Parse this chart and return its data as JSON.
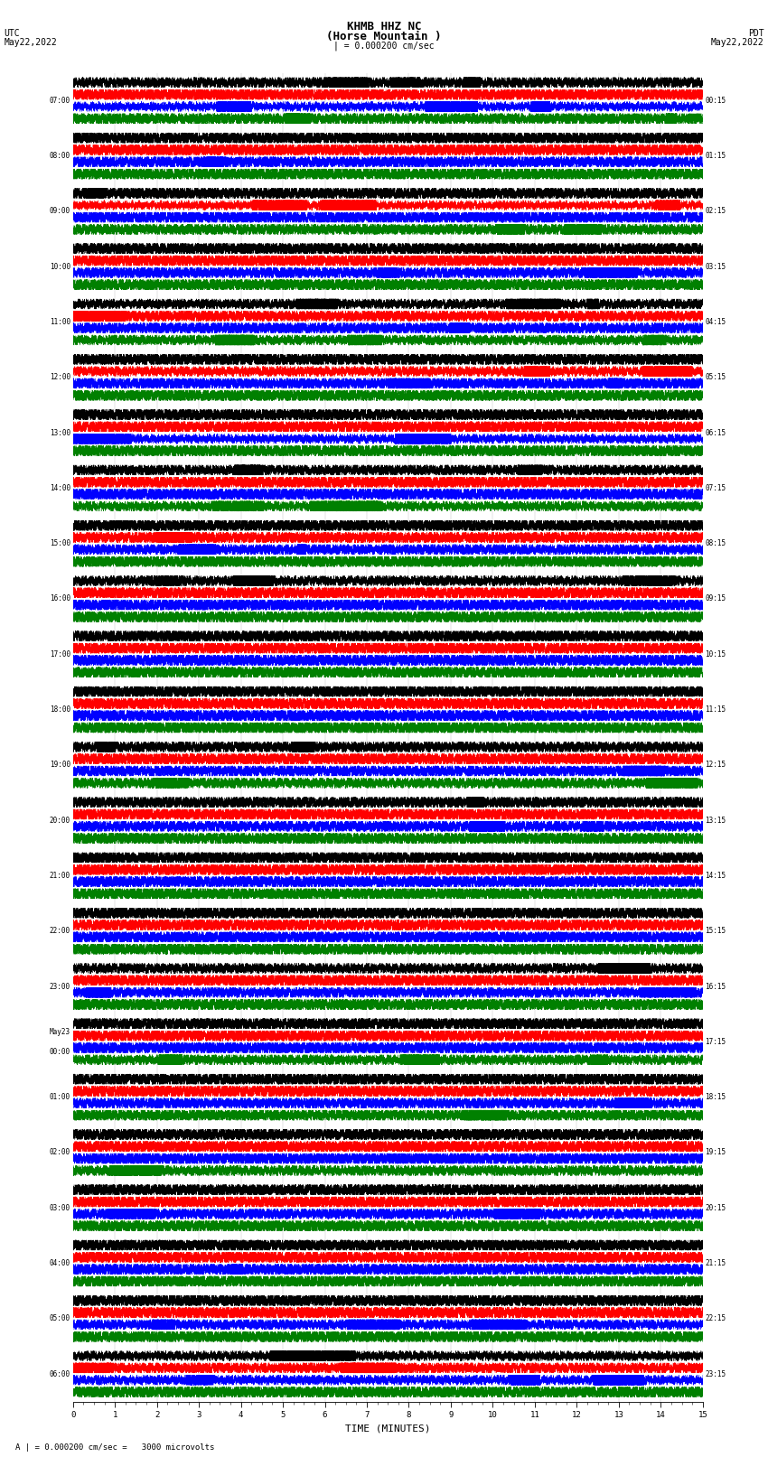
{
  "title_line1": "KHMB HHZ NC",
  "title_line2": "(Horse Mountain )",
  "scale_label": "| = 0.000200 cm/sec",
  "bottom_annotation": "A | = 0.000200 cm/sec =   3000 microvolts",
  "left_header_line1": "UTC",
  "left_header_line2": "May22,2022",
  "right_header_line1": "PDT",
  "right_header_line2": "May22,2022",
  "xlabel": "TIME (MINUTES)",
  "colors": [
    "black",
    "red",
    "blue",
    "green"
  ],
  "utc_labels": [
    "07:00",
    "08:00",
    "09:00",
    "10:00",
    "11:00",
    "12:00",
    "13:00",
    "14:00",
    "15:00",
    "16:00",
    "17:00",
    "18:00",
    "19:00",
    "20:00",
    "21:00",
    "22:00",
    "23:00",
    "May23\n00:00",
    "01:00",
    "02:00",
    "03:00",
    "04:00",
    "05:00",
    "06:00"
  ],
  "pdt_labels": [
    "00:15",
    "01:15",
    "02:15",
    "03:15",
    "04:15",
    "05:15",
    "06:15",
    "07:15",
    "08:15",
    "09:15",
    "10:15",
    "11:15",
    "12:15",
    "13:15",
    "14:15",
    "15:15",
    "16:15",
    "17:15",
    "18:15",
    "19:15",
    "20:15",
    "21:15",
    "22:15",
    "23:15"
  ],
  "n_rows": 24,
  "n_channels": 4,
  "duration_minutes": 15,
  "fig_width": 8.5,
  "fig_height": 16.13,
  "bg_color": "white",
  "lw": 0.25,
  "noise_amps": [
    0.18,
    0.22,
    0.2,
    0.15
  ]
}
